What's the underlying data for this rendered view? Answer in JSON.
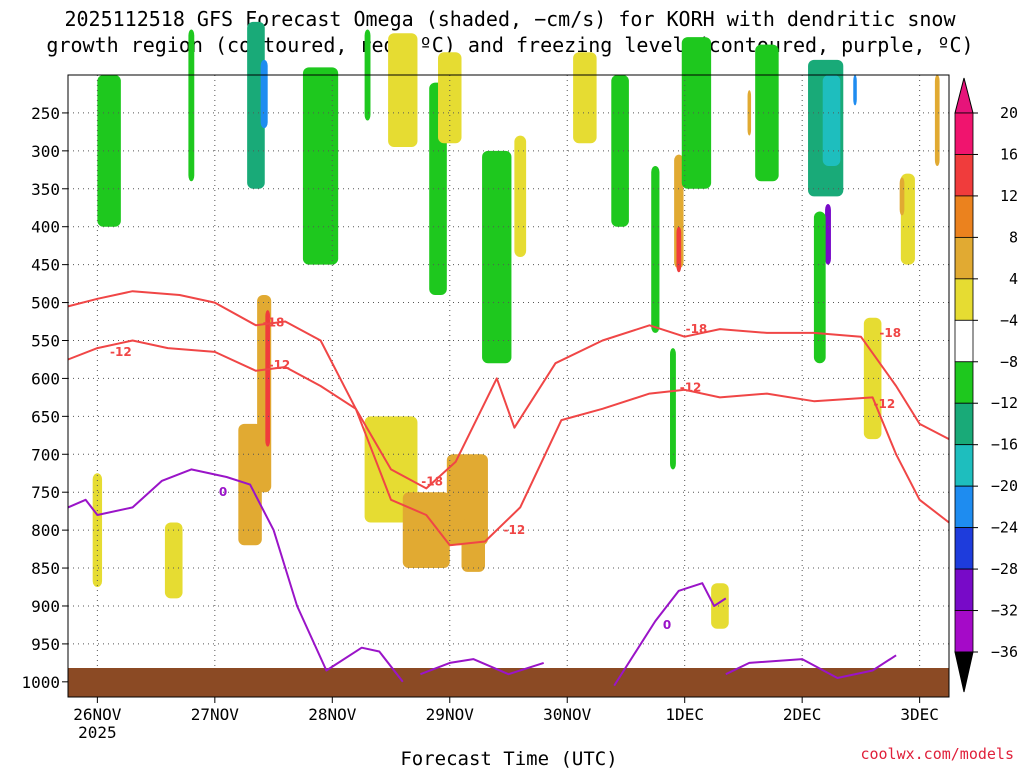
{
  "chart_data": {
    "type": "heatmap",
    "title_line1": "2025112518 GFS Forecast Omega (shaded, −cm/s) for KORH with dendritic snow",
    "title_line2": "growth region (contoured, red, ºC) and freezing level (contoured, purple, ºC)",
    "xlabel": "Forecast Time (UTC)",
    "credit": "coolwx.com/models",
    "x_ticks": [
      "26NOV",
      "27NOV",
      "28NOV",
      "29NOV",
      "30NOV",
      "1DEC",
      "2DEC",
      "3DEC"
    ],
    "x_year": "2025",
    "xlim_days": [
      -0.25,
      7.25
    ],
    "y_ticks": [
      "250",
      "300",
      "350",
      "400",
      "450",
      "500",
      "550",
      "600",
      "650",
      "700",
      "750",
      "800",
      "850",
      "900",
      "950",
      "1000"
    ],
    "ylim_hPa": [
      200,
      1020
    ],
    "colorbar": {
      "labels": [
        "20",
        "16",
        "12",
        "8",
        "4",
        "−4",
        "−8",
        "−12",
        "−16",
        "−20",
        "−24",
        "−28",
        "−32",
        "−36"
      ],
      "values": [
        20,
        16,
        12,
        8,
        4,
        -4,
        -8,
        -12,
        -16,
        -20,
        -24,
        -28,
        -32,
        -36
      ],
      "colors": [
        "#f0146e",
        "#f03c3c",
        "#eb821e",
        "#e1aa32",
        "#e6dc32",
        "#ffffff",
        "#1ec81e",
        "#19aa78",
        "#1ebebe",
        "#1e8cf0",
        "#1e3cdc",
        "#780ac8",
        "#a50ac8",
        "#aaaaaa"
      ]
    },
    "shading": [
      {
        "t": 0.8,
        "p": 240,
        "w": 0.05,
        "h": 200,
        "v": -6
      },
      {
        "t": 1.35,
        "p": 240,
        "w": 0.15,
        "h": 220,
        "v": -9
      },
      {
        "t": 1.42,
        "p": 225,
        "w": 0.06,
        "h": 90,
        "v": -20
      },
      {
        "t": 1.42,
        "p": 620,
        "w": 0.12,
        "h": 260,
        "v": 8
      },
      {
        "t": 1.45,
        "p": 600,
        "w": 0.04,
        "h": 180,
        "v": 18
      },
      {
        "t": 1.3,
        "p": 740,
        "w": 0.2,
        "h": 160,
        "v": 9
      },
      {
        "t": 1.9,
        "p": 320,
        "w": 0.3,
        "h": 260,
        "v": -6
      },
      {
        "t": 2.3,
        "p": 200,
        "w": 0.05,
        "h": 120,
        "v": -6
      },
      {
        "t": 2.6,
        "p": 220,
        "w": 0.25,
        "h": 150,
        "v": 5
      },
      {
        "t": 2.9,
        "p": 350,
        "w": 0.15,
        "h": 280,
        "v": -6
      },
      {
        "t": 3.4,
        "p": 440,
        "w": 0.25,
        "h": 280,
        "v": -7
      },
      {
        "t": 3.0,
        "p": 230,
        "w": 0.2,
        "h": 120,
        "v": 6
      },
      {
        "t": 2.5,
        "p": 720,
        "w": 0.45,
        "h": 140,
        "v": 5
      },
      {
        "t": 2.8,
        "p": 800,
        "w": 0.4,
        "h": 100,
        "v": 9
      },
      {
        "t": 3.15,
        "p": 760,
        "w": 0.35,
        "h": 120,
        "v": 8
      },
      {
        "t": 3.2,
        "p": 820,
        "w": 0.2,
        "h": 70,
        "v": 10
      },
      {
        "t": 3.6,
        "p": 360,
        "w": 0.1,
        "h": 160,
        "v": 5
      },
      {
        "t": 4.15,
        "p": 230,
        "w": 0.2,
        "h": 120,
        "v": 6
      },
      {
        "t": 4.45,
        "p": 300,
        "w": 0.15,
        "h": 200,
        "v": -6
      },
      {
        "t": 4.95,
        "p": 380,
        "w": 0.08,
        "h": 150,
        "v": 10
      },
      {
        "t": 4.95,
        "p": 430,
        "w": 0.04,
        "h": 60,
        "v": 18
      },
      {
        "t": 4.75,
        "p": 430,
        "w": 0.07,
        "h": 220,
        "v": -8
      },
      {
        "t": 4.9,
        "p": 640,
        "w": 0.05,
        "h": 160,
        "v": -6
      },
      {
        "t": 5.1,
        "p": 250,
        "w": 0.25,
        "h": 200,
        "v": -6
      },
      {
        "t": 5.7,
        "p": 250,
        "w": 0.2,
        "h": 180,
        "v": -6
      },
      {
        "t": 5.55,
        "p": 250,
        "w": 0.03,
        "h": 60,
        "v": 10
      },
      {
        "t": 6.2,
        "p": 270,
        "w": 0.3,
        "h": 180,
        "v": -9
      },
      {
        "t": 6.25,
        "p": 260,
        "w": 0.15,
        "h": 120,
        "v": -14
      },
      {
        "t": 6.22,
        "p": 410,
        "w": 0.05,
        "h": 80,
        "v": -26
      },
      {
        "t": 6.45,
        "p": 220,
        "w": 0.03,
        "h": 40,
        "v": -20
      },
      {
        "t": 6.15,
        "p": 480,
        "w": 0.1,
        "h": 200,
        "v": -8
      },
      {
        "t": 6.9,
        "p": 390,
        "w": 0.12,
        "h": 120,
        "v": 6
      },
      {
        "t": 6.85,
        "p": 360,
        "w": 0.04,
        "h": 50,
        "v": 11
      },
      {
        "t": 7.15,
        "p": 260,
        "w": 0.04,
        "h": 120,
        "v": 8
      },
      {
        "t": 5.3,
        "p": 900,
        "w": 0.15,
        "h": 60,
        "v": 5
      },
      {
        "t": 6.6,
        "p": 600,
        "w": 0.15,
        "h": 160,
        "v": 5
      },
      {
        "t": 0.1,
        "p": 300,
        "w": 0.2,
        "h": 200,
        "v": -6
      },
      {
        "t": 0.0,
        "p": 800,
        "w": 0.08,
        "h": 150,
        "v": 5
      },
      {
        "t": 0.65,
        "p": 840,
        "w": 0.15,
        "h": 100,
        "v": 5
      }
    ],
    "dendritic_m12_t": [
      -0.25,
      0.0,
      0.3,
      0.6,
      1.0,
      1.35,
      1.6,
      1.9,
      2.2,
      2.5,
      2.8,
      3.0,
      3.3,
      3.6,
      3.95,
      4.3,
      4.7,
      5.0,
      5.3,
      5.7,
      6.1,
      6.6,
      6.8,
      7.0,
      7.25
    ],
    "dendritic_m12_p": [
      575,
      560,
      550,
      560,
      565,
      590,
      585,
      610,
      640,
      760,
      780,
      820,
      815,
      770,
      655,
      640,
      620,
      615,
      625,
      620,
      630,
      625,
      700,
      760,
      790
    ],
    "dendritic_m18_t": [
      -0.25,
      0.0,
      0.3,
      0.7,
      1.0,
      1.35,
      1.6,
      1.9,
      2.2,
      2.5,
      2.8,
      3.05,
      3.4,
      3.55,
      3.9,
      4.3,
      4.7,
      5.0,
      5.3,
      5.7,
      6.1,
      6.5,
      6.8,
      7.0,
      7.25
    ],
    "dendritic_m18_p": [
      505,
      495,
      485,
      490,
      500,
      530,
      525,
      550,
      640,
      720,
      745,
      710,
      600,
      665,
      580,
      550,
      530,
      545,
      535,
      540,
      540,
      545,
      610,
      660,
      680
    ],
    "dendritic_labels": [
      "-12",
      "-12",
      "-18",
      "-12",
      "-18",
      "-12",
      "-18",
      "-12",
      "-18"
    ],
    "dendritic_label_pos": [
      [
        0.2,
        565
      ],
      [
        1.55,
        582
      ],
      [
        1.5,
        526
      ],
      [
        3.55,
        800
      ],
      [
        2.85,
        736
      ],
      [
        5.05,
        612
      ],
      [
        5.1,
        535
      ],
      [
        6.7,
        634
      ],
      [
        6.75,
        540
      ]
    ],
    "freezing_labels": [
      "0",
      "0"
    ],
    "freezing_label_pos": [
      [
        1.07,
        750
      ],
      [
        4.85,
        925
      ]
    ],
    "freezing_0C_segments": [
      {
        "t": [
          -0.25,
          -0.1,
          0.0,
          0.3,
          0.55,
          0.8,
          1.1,
          1.3,
          1.5,
          1.7,
          1.95,
          2.25,
          2.4,
          2.6
        ],
        "p": [
          770,
          760,
          780,
          770,
          735,
          720,
          730,
          740,
          800,
          900,
          985,
          955,
          960,
          1000
        ]
      },
      {
        "t": [
          2.75,
          3.0,
          3.2,
          3.5,
          3.8
        ],
        "p": [
          990,
          975,
          970,
          990,
          975
        ]
      },
      {
        "t": [
          4.4,
          4.75,
          4.95,
          5.15,
          5.25,
          5.35
        ],
        "p": [
          1005,
          920,
          880,
          870,
          900,
          890
        ]
      },
      {
        "t": [
          5.35,
          5.55,
          6.0,
          6.3,
          6.6,
          6.8
        ],
        "p": [
          990,
          975,
          970,
          995,
          985,
          965
        ]
      }
    ]
  }
}
